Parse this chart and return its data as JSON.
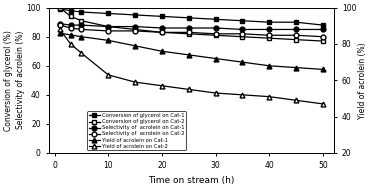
{
  "time": [
    1,
    3,
    5,
    10,
    15,
    20,
    25,
    30,
    35,
    40,
    45,
    50
  ],
  "conv_cat1": [
    99,
    98,
    97,
    96,
    95,
    94,
    93,
    92,
    91,
    90,
    90,
    88
  ],
  "conv_cat2": [
    100,
    94,
    91,
    87,
    85,
    83,
    82,
    81,
    80,
    79,
    78,
    77
  ],
  "sel_cat1": [
    89,
    88,
    88,
    87,
    87,
    86,
    86,
    86,
    85,
    85,
    85,
    85
  ],
  "sel_cat2": [
    88,
    86,
    85,
    84,
    84,
    83,
    83,
    82,
    82,
    81,
    81,
    80
  ],
  "yield_cat1": [
    86,
    85,
    84,
    82,
    79,
    76,
    74,
    72,
    70,
    68,
    67,
    66
  ],
  "yield_cat2": [
    88,
    80,
    75,
    63,
    59,
    57,
    55,
    53,
    52,
    51,
    49,
    47
  ],
  "left_ylim": [
    0,
    100
  ],
  "right_ylim": [
    20,
    100
  ],
  "left_yticks": [
    0,
    20,
    40,
    60,
    80,
    100
  ],
  "right_yticks": [
    20,
    40,
    60,
    80,
    100
  ],
  "xticks": [
    0,
    10,
    20,
    30,
    40,
    50
  ],
  "xlabel": "Time on stream (h)",
  "ylabel_left": "Conversion of glycerol (%)\nSelectivity of acrolein (%)",
  "ylabel_right": "Yield of acrolein (%)",
  "legend": [
    "Conversion of glycerol on Cat-1",
    "Conversion of glycerol on Cat-2",
    "Selectivity of  acrolein on Cat-1",
    "Selectivity of  acrolein on Cat-2",
    "Yield of acrolein on Cat-1",
    "Yield of acrolein on Cat-2"
  ],
  "line_color": "#000000",
  "bg_color": "#ffffff"
}
